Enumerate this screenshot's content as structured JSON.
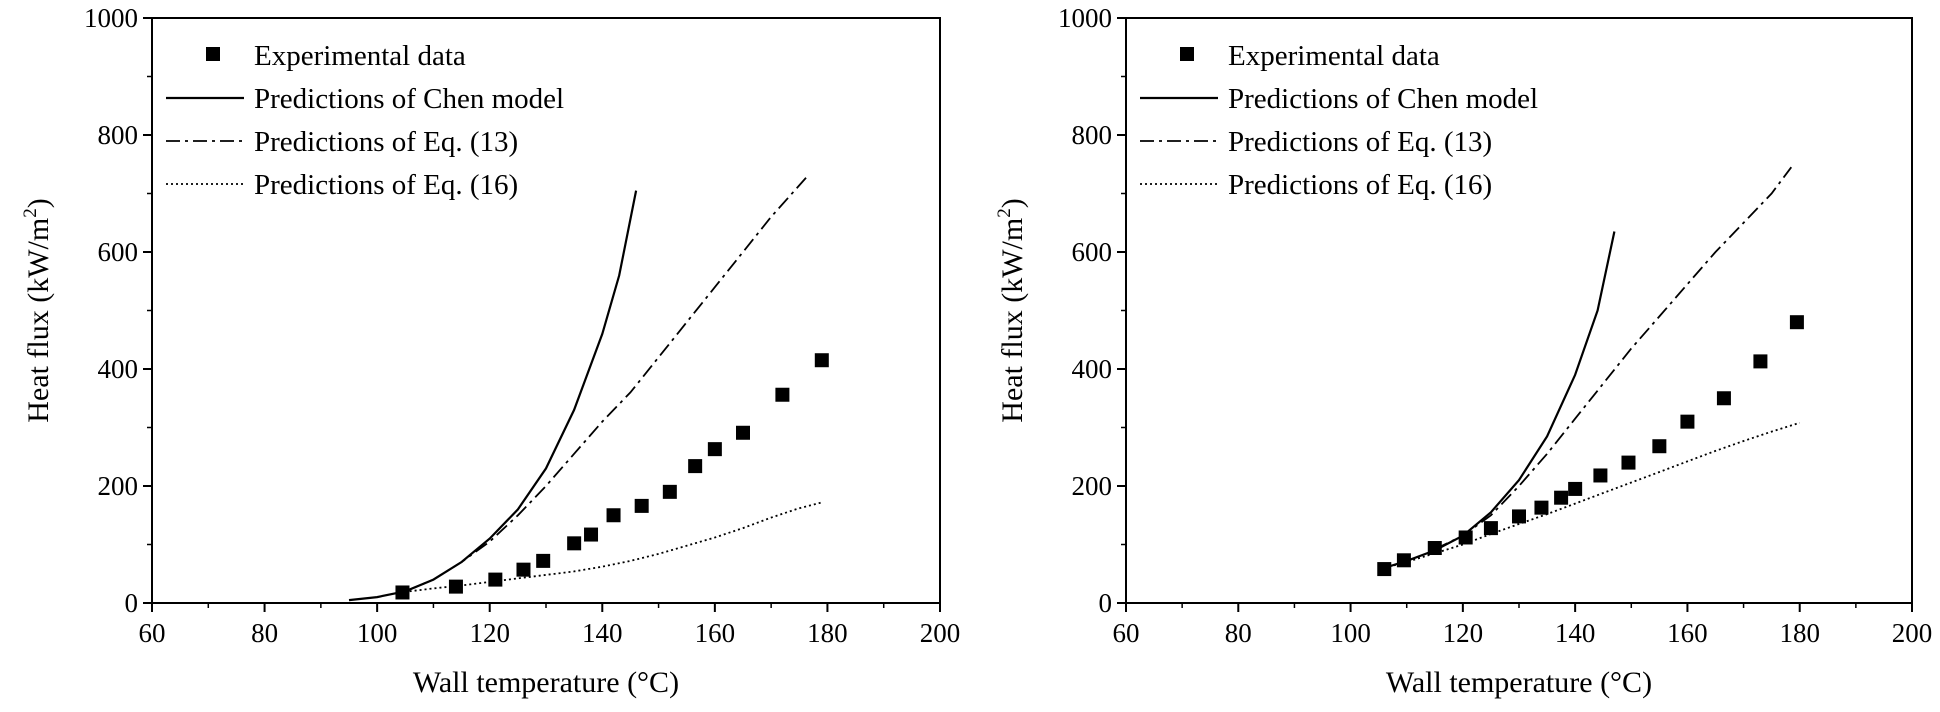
{
  "chart_data": [
    {
      "type": "scatter",
      "panel": "left",
      "xlabel": "Wall temperature (°C)",
      "ylabel_main": "Heat flux (kW/m",
      "ylabel_sup": "2",
      "ylabel_close": ")",
      "xlim": [
        60,
        200
      ],
      "ylim": [
        0,
        1000
      ],
      "xticks": [
        60,
        80,
        100,
        120,
        140,
        160,
        180,
        200
      ],
      "yticks": [
        0,
        200,
        400,
        600,
        800,
        1000
      ],
      "legend_position": "top-left",
      "series": [
        {
          "name": "Experimental data",
          "kind": "marker",
          "points": [
            [
              104.5,
              18
            ],
            [
              114,
              28
            ],
            [
              121,
              40
            ],
            [
              126,
              57
            ],
            [
              129.5,
              72
            ],
            [
              135,
              102
            ],
            [
              138,
              117
            ],
            [
              142,
              150
            ],
            [
              147,
              166
            ],
            [
              152,
              190
            ],
            [
              156.5,
              234
            ],
            [
              160,
              263
            ],
            [
              165,
              291
            ],
            [
              172,
              356
            ],
            [
              179,
              415
            ]
          ]
        },
        {
          "name": "Predictions of Chen model",
          "kind": "line",
          "dash": "solid",
          "points": [
            [
              95,
              5
            ],
            [
              100,
              10
            ],
            [
              105,
              20
            ],
            [
              110,
              40
            ],
            [
              115,
              70
            ],
            [
              120,
              110
            ],
            [
              125,
              160
            ],
            [
              130,
              230
            ],
            [
              135,
              330
            ],
            [
              140,
              460
            ],
            [
              143,
              560
            ],
            [
              146,
              705
            ]
          ]
        },
        {
          "name": "Predictions of Eq. (13)",
          "kind": "line",
          "dash": "dashdot",
          "points": [
            [
              105,
              20
            ],
            [
              110,
              40
            ],
            [
              115,
              70
            ],
            [
              120,
              105
            ],
            [
              125,
              150
            ],
            [
              130,
              200
            ],
            [
              135,
              255
            ],
            [
              140,
              310
            ],
            [
              145,
              360
            ],
            [
              150,
              420
            ],
            [
              155,
              480
            ],
            [
              160,
              540
            ],
            [
              165,
              600
            ],
            [
              170,
              660
            ],
            [
              176.5,
              730
            ]
          ]
        },
        {
          "name": "Predictions of Eq. (16)",
          "kind": "line",
          "dash": "dotted",
          "points": [
            [
              104,
              18
            ],
            [
              110,
              25
            ],
            [
              115,
              30
            ],
            [
              120,
              36
            ],
            [
              125,
              42
            ],
            [
              130,
              48
            ],
            [
              135,
              54
            ],
            [
              140,
              62
            ],
            [
              145,
              72
            ],
            [
              150,
              84
            ],
            [
              155,
              98
            ],
            [
              160,
              112
            ],
            [
              165,
              128
            ],
            [
              170,
              146
            ],
            [
              175,
              162
            ],
            [
              179,
              172
            ]
          ]
        }
      ]
    },
    {
      "type": "scatter",
      "panel": "right",
      "xlabel": "Wall temperature (°C)",
      "ylabel_main": "Heat flux (kW/m",
      "ylabel_sup": "2",
      "ylabel_close": ")",
      "xlim": [
        60,
        200
      ],
      "ylim": [
        0,
        1000
      ],
      "xticks": [
        60,
        80,
        100,
        120,
        140,
        160,
        180,
        200
      ],
      "yticks": [
        0,
        200,
        400,
        600,
        800,
        1000
      ],
      "legend_position": "top-left",
      "series": [
        {
          "name": "Experimental data",
          "kind": "marker",
          "points": [
            [
              106,
              58
            ],
            [
              109.5,
              73
            ],
            [
              115,
              94
            ],
            [
              120.5,
              112
            ],
            [
              125,
              128
            ],
            [
              130,
              148
            ],
            [
              134,
              163
            ],
            [
              137.5,
              180
            ],
            [
              140,
              195
            ],
            [
              144.5,
              218
            ],
            [
              149.5,
              240
            ],
            [
              155,
              268
            ],
            [
              160,
              310
            ],
            [
              166.5,
              350
            ],
            [
              173,
              413
            ],
            [
              179.5,
              480
            ]
          ]
        },
        {
          "name": "Predictions of Chen model",
          "kind": "line",
          "dash": "solid",
          "points": [
            [
              106,
              60
            ],
            [
              110,
              72
            ],
            [
              115,
              90
            ],
            [
              120,
              115
            ],
            [
              125,
              155
            ],
            [
              130,
              210
            ],
            [
              135,
              285
            ],
            [
              140,
              390
            ],
            [
              144,
              500
            ],
            [
              147,
              635
            ]
          ]
        },
        {
          "name": "Predictions of Eq. (13)",
          "kind": "line",
          "dash": "dashdot",
          "points": [
            [
              115,
              92
            ],
            [
              120,
              115
            ],
            [
              125,
              150
            ],
            [
              130,
              200
            ],
            [
              135,
              255
            ],
            [
              140,
              315
            ],
            [
              145,
              375
            ],
            [
              150,
              435
            ],
            [
              155,
              490
            ],
            [
              160,
              545
            ],
            [
              165,
              600
            ],
            [
              170,
              650
            ],
            [
              175,
              700
            ],
            [
              178.5,
              745
            ]
          ]
        },
        {
          "name": "Predictions of Eq. (16)",
          "kind": "line",
          "dash": "dotted",
          "points": [
            [
              106,
              60
            ],
            [
              110,
              70
            ],
            [
              115,
              85
            ],
            [
              120,
              100
            ],
            [
              125,
              118
            ],
            [
              130,
              135
            ],
            [
              135,
              152
            ],
            [
              140,
              170
            ],
            [
              145,
              188
            ],
            [
              150,
              206
            ],
            [
              155,
              224
            ],
            [
              160,
              242
            ],
            [
              165,
              260
            ],
            [
              170,
              277
            ],
            [
              175,
              293
            ],
            [
              180,
              308
            ]
          ]
        }
      ]
    }
  ]
}
